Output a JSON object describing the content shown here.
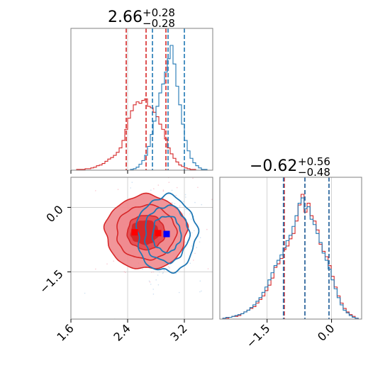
{
  "colors": {
    "red": "#d62728",
    "blue": "#1f77b4",
    "red_fill_light": "#f08a8e",
    "red_fill_mid": "#e24a50",
    "grid": "#c8c8c8",
    "frame": "#808080"
  },
  "titles": {
    "param1": {
      "value": "2.66",
      "upper": "+0.28",
      "lower": "−0.28"
    },
    "param2": {
      "value": "−0.62",
      "upper": "+0.56",
      "lower": "−0.48"
    }
  },
  "chart_data": [
    {
      "type": "histogram",
      "panel": "top-left marginal (parameter 1)",
      "xlim": [
        1.6,
        3.6
      ],
      "xticks": [
        1.6,
        2.4,
        3.2
      ],
      "truth_line": 2.4,
      "series": [
        {
          "color": "red",
          "quantiles": [
            2.38,
            2.66,
            2.94
          ],
          "bins_x": [
            1.6,
            1.64,
            1.68,
            1.72,
            1.76,
            1.8,
            1.84,
            1.88,
            1.92,
            1.96,
            2.0,
            2.04,
            2.08,
            2.12,
            2.16,
            2.2,
            2.24,
            2.28,
            2.32,
            2.36,
            2.4,
            2.44,
            2.48,
            2.52,
            2.56,
            2.6,
            2.64,
            2.68,
            2.72,
            2.76,
            2.8,
            2.84,
            2.88,
            2.92,
            2.96,
            3.0,
            3.04,
            3.08,
            3.12,
            3.16,
            3.2,
            3.24,
            3.28,
            3.32,
            3.36,
            3.4,
            3.44,
            3.48,
            3.52,
            3.56
          ],
          "counts": [
            0,
            0,
            1,
            1,
            1,
            2,
            2,
            3,
            4,
            6,
            7,
            9,
            12,
            15,
            17,
            20,
            24,
            30,
            40,
            55,
            70,
            80,
            88,
            92,
            90,
            94,
            96,
            86,
            84,
            78,
            72,
            62,
            55,
            42,
            30,
            22,
            16,
            11,
            7,
            5,
            3,
            2,
            1,
            1,
            0,
            0,
            0,
            0,
            0,
            0
          ]
        },
        {
          "color": "blue",
          "quantiles": [
            2.75,
            2.97,
            3.2
          ],
          "bins_x": [
            2.4,
            2.44,
            2.48,
            2.52,
            2.56,
            2.6,
            2.64,
            2.68,
            2.72,
            2.76,
            2.8,
            2.84,
            2.88,
            2.92,
            2.96,
            3.0,
            3.04,
            3.08,
            3.12,
            3.16,
            3.2,
            3.24,
            3.28,
            3.32,
            3.36,
            3.4,
            3.44,
            3.48,
            3.52
          ],
          "counts": [
            0,
            1,
            2,
            4,
            8,
            13,
            20,
            32,
            48,
            66,
            86,
            104,
            116,
            132,
            150,
            168,
            143,
            113,
            88,
            62,
            40,
            26,
            16,
            10,
            6,
            3,
            1,
            1,
            0
          ]
        }
      ]
    },
    {
      "type": "contour",
      "panel": "bottom-left 2D (parameter 1 vs parameter 2)",
      "xlim": [
        1.6,
        3.6
      ],
      "ylim": [
        -2.6,
        0.7
      ],
      "xticks": [
        1.6,
        2.4,
        3.2
      ],
      "yticks": [
        0.0,
        -1.5
      ],
      "grid_x": [
        2.4,
        3.2
      ],
      "grid_y": [
        0.0,
        -1.5
      ],
      "series": [
        {
          "color": "red",
          "filled": true,
          "center": [
            2.66,
            -0.58
          ],
          "sigma": [
            0.28,
            0.42
          ]
        },
        {
          "color": "blue",
          "filled": false,
          "center": [
            2.95,
            -0.62
          ],
          "sigma": [
            0.2,
            0.42
          ]
        }
      ],
      "markers": [
        {
          "color": "red",
          "x": 2.5,
          "y": -0.58
        },
        {
          "color": "red",
          "x": 2.83,
          "y": -0.6
        },
        {
          "color": "blue",
          "x": 2.95,
          "y": -0.62
        }
      ]
    },
    {
      "type": "histogram",
      "panel": "bottom-right marginal (parameter 2)",
      "xlim": [
        -2.6,
        0.7
      ],
      "xticks": [
        -1.5,
        0.0
      ],
      "grid_x": [
        -1.5,
        0.0
      ],
      "series": [
        {
          "color": "red",
          "quantiles": [
            -1.1,
            -0.62,
            -0.06
          ],
          "bins_x": [
            -2.6,
            -2.53,
            -2.46,
            -2.39,
            -2.32,
            -2.25,
            -2.18,
            -2.11,
            -2.04,
            -1.97,
            -1.9,
            -1.83,
            -1.76,
            -1.69,
            -1.62,
            -1.55,
            -1.48,
            -1.41,
            -1.34,
            -1.27,
            -1.2,
            -1.13,
            -1.06,
            -0.99,
            -0.92,
            -0.85,
            -0.78,
            -0.71,
            -0.64,
            -0.57,
            -0.5,
            -0.43,
            -0.36,
            -0.29,
            -0.22,
            -0.15,
            -0.08,
            -0.01,
            0.06,
            0.13,
            0.2,
            0.27,
            0.34,
            0.41,
            0.48,
            0.55,
            0.62
          ],
          "counts": [
            0,
            1,
            1,
            2,
            3,
            3,
            4,
            6,
            8,
            10,
            12,
            14,
            18,
            22,
            26,
            32,
            38,
            46,
            58,
            62,
            68,
            78,
            82,
            90,
            96,
            110,
            128,
            140,
            120,
            130,
            116,
            110,
            100,
            84,
            76,
            70,
            60,
            48,
            36,
            26,
            18,
            12,
            8,
            5,
            3,
            1,
            0
          ]
        },
        {
          "color": "blue",
          "quantiles": [
            -1.12,
            -0.62,
            -0.06
          ],
          "bins_x": [
            -2.6,
            -2.53,
            -2.46,
            -2.39,
            -2.32,
            -2.25,
            -2.18,
            -2.11,
            -2.04,
            -1.97,
            -1.9,
            -1.83,
            -1.76,
            -1.69,
            -1.62,
            -1.55,
            -1.48,
            -1.41,
            -1.34,
            -1.27,
            -1.2,
            -1.13,
            -1.06,
            -0.99,
            -0.92,
            -0.85,
            -0.78,
            -0.71,
            -0.64,
            -0.57,
            -0.5,
            -0.43,
            -0.36,
            -0.29,
            -0.22,
            -0.15,
            -0.08,
            -0.01,
            0.06,
            0.13,
            0.2,
            0.27,
            0.34,
            0.41,
            0.48,
            0.55,
            0.62
          ],
          "counts": [
            0,
            1,
            2,
            2,
            3,
            4,
            5,
            6,
            8,
            10,
            13,
            16,
            20,
            24,
            30,
            36,
            44,
            52,
            60,
            66,
            72,
            80,
            88,
            94,
            104,
            116,
            130,
            136,
            124,
            126,
            112,
            106,
            96,
            86,
            74,
            66,
            56,
            44,
            34,
            24,
            16,
            10,
            7,
            4,
            2,
            1,
            0
          ]
        }
      ]
    }
  ]
}
